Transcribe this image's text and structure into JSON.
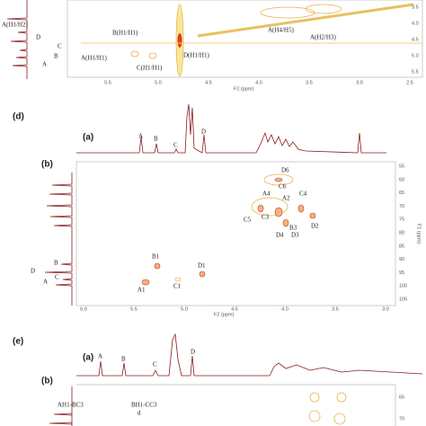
{
  "panel_c": {
    "annotations": [
      "A(H1/H2)",
      "B(H1/H1)",
      "A(H1/H1)",
      "C(H1/H1)",
      "D(H1/H1)",
      "A(H4/H5)",
      "A(H2/H3)"
    ],
    "labels_1d": [
      "D",
      "C",
      "B",
      "A"
    ],
    "x_ticks": [
      "5.5",
      "5.0",
      "4.5",
      "4.0",
      "3.5",
      "3.0",
      "2.5"
    ],
    "x_label": "F2 (ppm)",
    "y_ticks": [
      "3.5",
      "4.0",
      "4.5",
      "5.0",
      "5.5"
    ]
  },
  "panel_d": {
    "label": "(d)",
    "sub_a": "(a)",
    "sub_b": "(b)",
    "labels_1d_top": [
      "A",
      "B",
      "C",
      "D"
    ],
    "labels_1d_left": [
      "B",
      "D",
      "C",
      "A"
    ],
    "peaks": [
      "D6",
      "C6",
      "A4",
      "A2",
      "C4",
      "C5",
      "C3",
      "B3",
      "D4",
      "D3",
      "D2",
      "B1",
      "D1",
      "A1",
      "C1"
    ],
    "x_ticks": [
      "6.0",
      "5.5",
      "5.0",
      "4.5",
      "4.0",
      "3.5",
      "3.0",
      "2.5"
    ],
    "x_label": "F2 (ppm)",
    "y_ticks": [
      "55",
      "60",
      "65",
      "70",
      "75",
      "80",
      "85",
      "90",
      "95",
      "100",
      "105"
    ],
    "y_label": "F1 (ppm)"
  },
  "panel_e": {
    "label": "(e)",
    "sub_a": "(a)",
    "sub_b": "(b)",
    "labels_1d_top": [
      "A",
      "B",
      "C",
      "D"
    ],
    "annotations": [
      "AH1-BC3",
      "BH1-CC3",
      "d"
    ],
    "y_ticks": [
      "65",
      "70"
    ]
  }
}
